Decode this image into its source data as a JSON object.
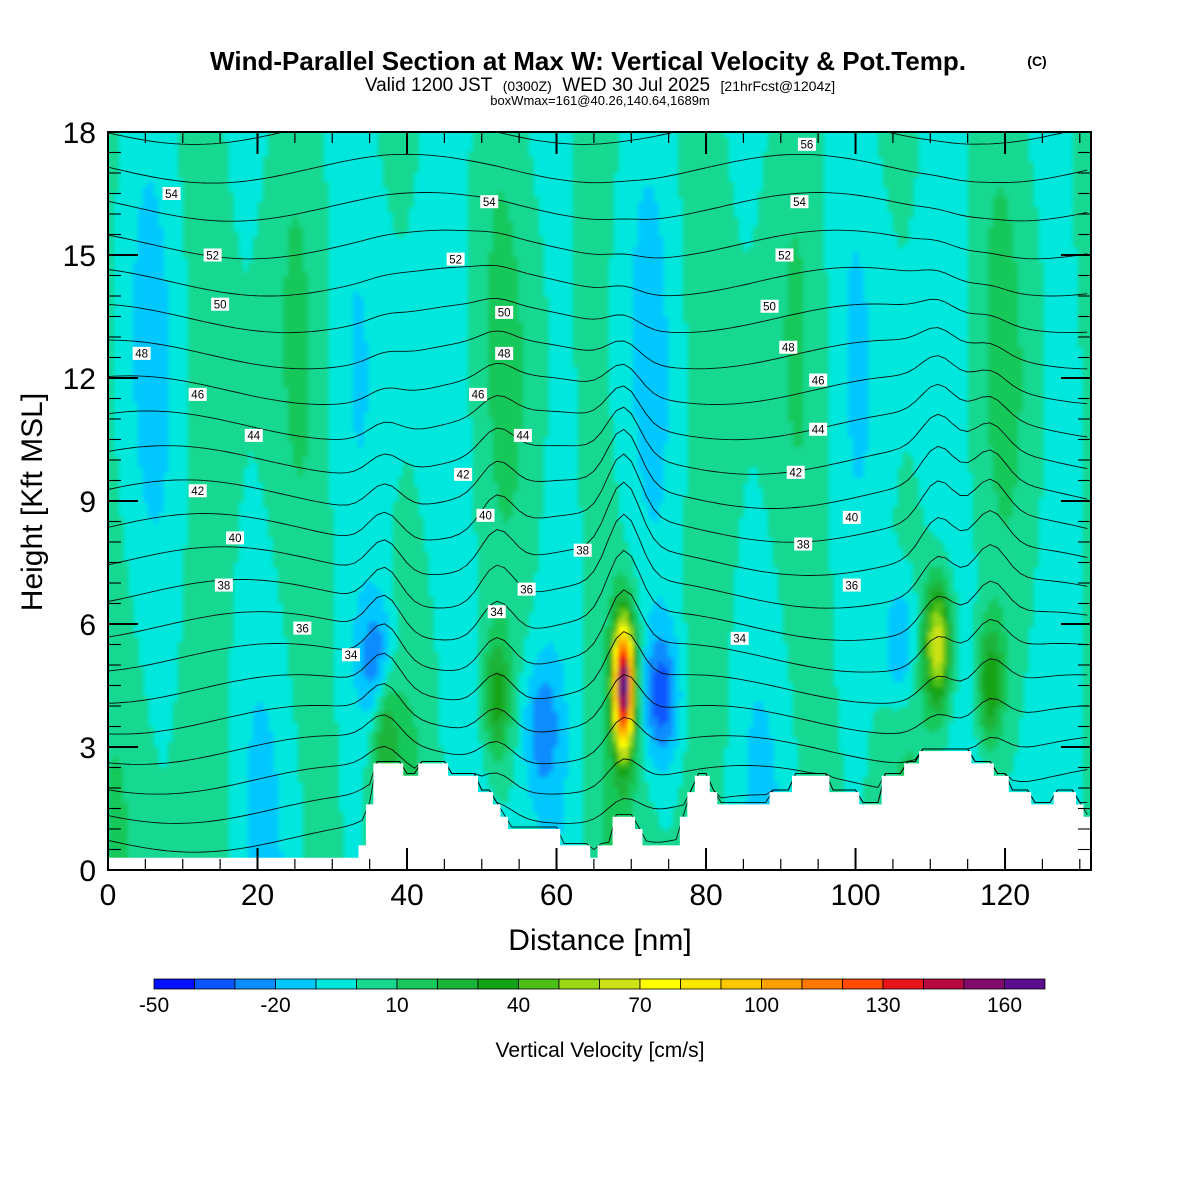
{
  "header": {
    "title": "Wind-Parallel Section at Max W: Vertical Velocity & Pot.Temp.",
    "copyright": "(C)",
    "valid_prefix": "Valid 1200 JST",
    "valid_utc": "(0300Z)",
    "valid_date": "WED 30 Jul 2025",
    "forecast": "[21hrFcst@1204z]",
    "boxwmax": "boxWmax=161@40.26,140.64,1689m"
  },
  "colorbar": {
    "label": "Vertical Velocity [cm/s]",
    "tick_labels": [
      "-50",
      "-20",
      "10",
      "40",
      "70",
      "100",
      "130",
      "160"
    ],
    "tick_values": [
      -50,
      -20,
      10,
      40,
      70,
      100,
      130,
      160
    ],
    "range": [
      -50,
      170
    ],
    "step": 10,
    "colors": [
      "#0010ff",
      "#0a55ff",
      "#0a8cff",
      "#00c8ff",
      "#00e8dd",
      "#18d890",
      "#19c85a",
      "#1ab43b",
      "#12a418",
      "#4cbe14",
      "#98d814",
      "#cce214",
      "#ffff00",
      "#ffe800",
      "#ffc800",
      "#ffa000",
      "#ff7800",
      "#ff4a00",
      "#e8141c",
      "#b80840",
      "#820a6c",
      "#5a0c8c"
    ]
  },
  "chart_data": {
    "type": "heatmap",
    "title": "Wind-Parallel Section at Max W: Vertical Velocity & Pot.Temp.",
    "xlabel": "Distance [nm]",
    "ylabel": "Height [Kft MSL]",
    "xlim": [
      0,
      131.5
    ],
    "ylim": [
      0,
      18
    ],
    "x_ticks": [
      0,
      20,
      40,
      60,
      80,
      100,
      120
    ],
    "y_ticks": [
      0,
      3,
      6,
      9,
      12,
      15,
      18
    ],
    "background_w": 0,
    "w_max": 161,
    "updraft_cores": [
      {
        "x": 69,
        "z": 4.5,
        "w_max": 161
      },
      {
        "x": 111,
        "z": 5.5,
        "w_max": 70
      },
      {
        "x": 118,
        "z": 4.5,
        "w_max": 40
      },
      {
        "x": 52,
        "z": 4.2,
        "w_max": 35
      },
      {
        "x": 37,
        "z": 3.5,
        "w_max": 30
      }
    ],
    "downdraft_cores": [
      {
        "x": 36,
        "z": 5.0,
        "w_min": -30
      },
      {
        "x": 74,
        "z": 4.2,
        "w_min": -35
      },
      {
        "x": 106,
        "z": 5.5,
        "w_min": -25
      },
      {
        "x": 58,
        "z": 3.5,
        "w_min": -22
      }
    ],
    "terrain": {
      "x": [
        0,
        33.5,
        34.5,
        35.5,
        36.5,
        38.5,
        39.5,
        40.5,
        41.5,
        44.5,
        45.5,
        48.5,
        49.5,
        51.5,
        52.5,
        53.5,
        54.5,
        55.5,
        56.5,
        60.5,
        61.5,
        64.5,
        65.5,
        67.5,
        68.5,
        70.5,
        71.5,
        76.5,
        77.5,
        78.5,
        79.5,
        80.5,
        81.5,
        82.5,
        87.5,
        88.5,
        90.5,
        91.5,
        92.5,
        93.5,
        96.5,
        97.5,
        100.5,
        101.5,
        103.5,
        104.5,
        106.5,
        107.5,
        108.5,
        114.5,
        115.5,
        117.5,
        118.5,
        120.5,
        121.5,
        123.5,
        124.5,
        126.5,
        127.5,
        129.5,
        130.5,
        131.5
      ],
      "z": [
        0.3,
        0.6,
        1.6,
        2.6,
        2.6,
        2.6,
        2.3,
        2.3,
        2.6,
        2.6,
        2.3,
        2.3,
        1.9,
        1.6,
        1.3,
        1.0,
        1.0,
        1.0,
        1.0,
        0.6,
        0.6,
        0.3,
        0.6,
        1.3,
        1.3,
        1.0,
        0.6,
        1.3,
        1.9,
        2.3,
        2.3,
        1.9,
        1.6,
        1.6,
        1.6,
        1.9,
        1.9,
        2.3,
        2.3,
        2.3,
        1.9,
        1.9,
        1.6,
        1.6,
        2.3,
        2.3,
        2.6,
        2.6,
        2.9,
        2.9,
        2.6,
        2.6,
        2.3,
        1.9,
        1.9,
        1.6,
        1.6,
        1.9,
        1.9,
        1.6,
        1.3,
        1.3
      ]
    },
    "isentropes": {
      "levels": [
        34,
        36,
        38,
        40,
        42,
        44,
        46,
        48,
        50,
        52,
        54,
        56
      ],
      "labels": [
        {
          "text": "54",
          "x": 8.5,
          "z": 16.5
        },
        {
          "text": "52",
          "x": 14,
          "z": 15.0
        },
        {
          "text": "50",
          "x": 15,
          "z": 13.8
        },
        {
          "text": "48",
          "x": 4.5,
          "z": 12.6
        },
        {
          "text": "46",
          "x": 12,
          "z": 11.6
        },
        {
          "text": "44",
          "x": 19.5,
          "z": 10.6
        },
        {
          "text": "42",
          "x": 12,
          "z": 9.25
        },
        {
          "text": "40",
          "x": 17,
          "z": 8.1
        },
        {
          "text": "38",
          "x": 15.5,
          "z": 6.95
        },
        {
          "text": "36",
          "x": 26,
          "z": 5.9
        },
        {
          "text": "34",
          "x": 32.5,
          "z": 5.25
        },
        {
          "text": "54",
          "x": 51,
          "z": 16.3
        },
        {
          "text": "52",
          "x": 46.5,
          "z": 14.9
        },
        {
          "text": "50",
          "x": 53,
          "z": 13.6
        },
        {
          "text": "48",
          "x": 53,
          "z": 12.6
        },
        {
          "text": "46",
          "x": 49.5,
          "z": 11.6
        },
        {
          "text": "44",
          "x": 55.5,
          "z": 10.6
        },
        {
          "text": "42",
          "x": 47.5,
          "z": 9.65
        },
        {
          "text": "40",
          "x": 50.5,
          "z": 8.65
        },
        {
          "text": "38",
          "x": 63.5,
          "z": 7.8
        },
        {
          "text": "36",
          "x": 56,
          "z": 6.85
        },
        {
          "text": "34",
          "x": 52,
          "z": 6.3
        },
        {
          "text": "56",
          "x": 93.5,
          "z": 17.7
        },
        {
          "text": "54",
          "x": 92.5,
          "z": 16.3
        },
        {
          "text": "52",
          "x": 90.5,
          "z": 15.0
        },
        {
          "text": "50",
          "x": 88.5,
          "z": 13.75
        },
        {
          "text": "48",
          "x": 91,
          "z": 12.75
        },
        {
          "text": "46",
          "x": 95,
          "z": 11.95
        },
        {
          "text": "44",
          "x": 95,
          "z": 10.75
        },
        {
          "text": "42",
          "x": 92,
          "z": 9.7
        },
        {
          "text": "40",
          "x": 99.5,
          "z": 8.6
        },
        {
          "text": "38",
          "x": 93,
          "z": 7.95
        },
        {
          "text": "36",
          "x": 99.5,
          "z": 6.95
        },
        {
          "text": "34",
          "x": 84.5,
          "z": 5.65
        }
      ]
    }
  }
}
